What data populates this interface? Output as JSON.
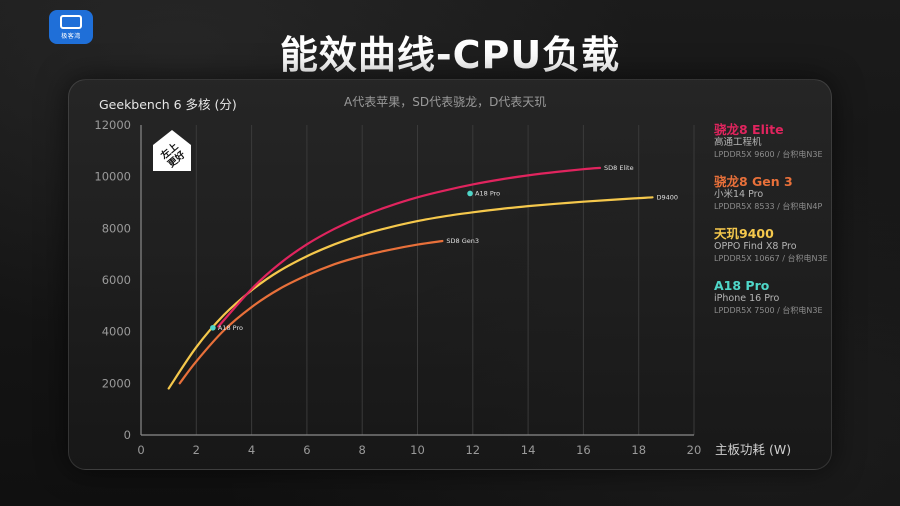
{
  "page": {
    "title": "能效曲线-CPU负载",
    "logo_text": "极客湾"
  },
  "chart_data": {
    "type": "line",
    "title": "Geekbench 6  多核 (分)",
    "subtitle": "A代表苹果，SD代表骁龙，D代表天玑",
    "xlabel": "主板功耗 (W)",
    "ylabel": "Geekbench 6  多核 (分)",
    "xlim": [
      0,
      20
    ],
    "ylim": [
      0,
      12000
    ],
    "xticks": [
      0,
      2,
      4,
      6,
      8,
      10,
      12,
      14,
      16,
      18,
      20
    ],
    "yticks": [
      0,
      2000,
      4000,
      6000,
      8000,
      10000,
      12000
    ],
    "grid": "x-vertical-lines",
    "legend_position": "right",
    "badge": "左上\n更好",
    "series": [
      {
        "name": "骁龙8 Elite",
        "end_label": "SD8 Elite",
        "color": "#e0245e",
        "device": "高通工程机",
        "memory": "LPDDR5X 9600 / 台积电N3E",
        "x": [
          2.8,
          4,
          5,
          6,
          7,
          8,
          9,
          10,
          11,
          12,
          13,
          14,
          15,
          16,
          16.6
        ],
        "y": [
          4200,
          5650,
          6620,
          7380,
          7980,
          8470,
          8870,
          9200,
          9470,
          9700,
          9890,
          10050,
          10180,
          10290,
          10340
        ]
      },
      {
        "name": "骁龙8 Gen 3",
        "end_label": "SD8 Gen3",
        "color": "#e8703a",
        "device": "小米14 Pro",
        "memory": "LPDDR5X 8533 / 台积电N4P",
        "x": [
          1.4,
          2,
          3,
          4,
          5,
          6,
          7,
          8,
          9,
          10,
          10.9
        ],
        "y": [
          2000,
          2850,
          4050,
          4950,
          5650,
          6180,
          6610,
          6930,
          7170,
          7370,
          7510
        ]
      },
      {
        "name": "天玑9400",
        "end_label": "D9400",
        "color": "#f5c84c",
        "device": "OPPO Find X8 Pro",
        "memory": "LPDDR5X 10667 / 台积电N3E",
        "x": [
          1,
          2,
          3,
          4,
          5,
          6,
          7,
          8,
          9,
          10,
          11,
          12,
          13,
          14,
          15,
          16,
          17,
          18,
          18.5
        ],
        "y": [
          1800,
          3400,
          4650,
          5600,
          6350,
          6920,
          7380,
          7750,
          8040,
          8280,
          8470,
          8620,
          8750,
          8860,
          8950,
          9030,
          9100,
          9170,
          9200
        ]
      },
      {
        "name": "A18 Pro",
        "point_label": "A18 Pro",
        "color": "#4fd6c8",
        "device": "iPhone 16 Pro",
        "memory": "LPDDR5X 7500 / 台积电N3E",
        "x": [
          2.6,
          11.9
        ],
        "y": [
          4150,
          9350
        ]
      }
    ]
  }
}
